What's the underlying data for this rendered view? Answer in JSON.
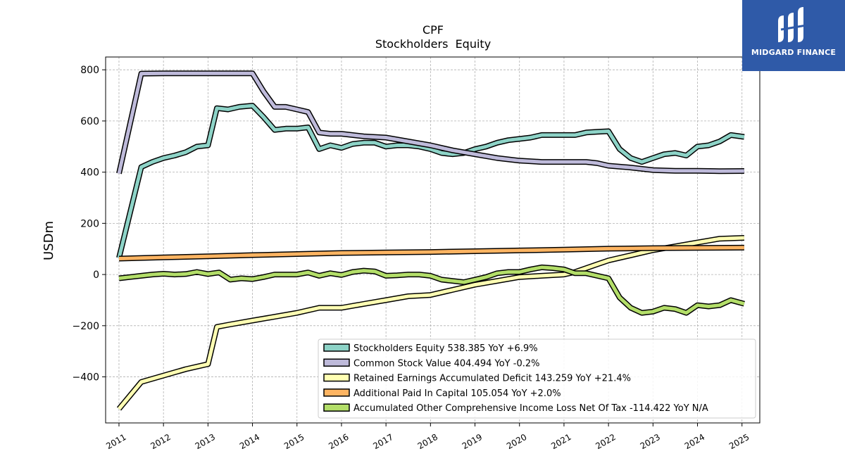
{
  "logo": {
    "text": "MIDGARD FINANCE"
  },
  "chart_data": {
    "type": "line",
    "title": "CPF",
    "subtitle": "Stockholders  Equity",
    "ylabel": "USDm",
    "xlabel": "",
    "xlim": [
      2010.7,
      2025.4
    ],
    "ylim": [
      -580,
      850
    ],
    "yticks": [
      -400,
      -200,
      0,
      200,
      400,
      600,
      800
    ],
    "ytick_labels": [
      "−400",
      "−200",
      "0",
      "200",
      "400",
      "600",
      "800"
    ],
    "xticks": [
      2011,
      2012,
      2013,
      2014,
      2015,
      2016,
      2017,
      2018,
      2019,
      2020,
      2021,
      2022,
      2023,
      2024,
      2025
    ],
    "xtick_labels": [
      "2011",
      "2012",
      "2013",
      "2014",
      "2015",
      "2016",
      "2017",
      "2018",
      "2019",
      "2020",
      "2021",
      "2022",
      "2023",
      "2024",
      "2025"
    ],
    "grid": true,
    "legend_position": "lower-right",
    "series": [
      {
        "name": "Stockholders Equity  538.385 YoY +6.9%",
        "color": "#8dd3c7",
        "points": [
          [
            2011.0,
            65
          ],
          [
            2011.5,
            420
          ],
          [
            2011.75,
            440
          ],
          [
            2012.0,
            455
          ],
          [
            2012.25,
            465
          ],
          [
            2012.5,
            478
          ],
          [
            2012.75,
            500
          ],
          [
            2013.0,
            505
          ],
          [
            2013.2,
            650
          ],
          [
            2013.45,
            645
          ],
          [
            2013.7,
            655
          ],
          [
            2014.0,
            660
          ],
          [
            2014.25,
            615
          ],
          [
            2014.5,
            565
          ],
          [
            2014.75,
            570
          ],
          [
            2015.0,
            570
          ],
          [
            2015.25,
            575
          ],
          [
            2015.5,
            490
          ],
          [
            2015.75,
            505
          ],
          [
            2016.0,
            495
          ],
          [
            2016.25,
            510
          ],
          [
            2016.5,
            515
          ],
          [
            2016.75,
            515
          ],
          [
            2017.0,
            500
          ],
          [
            2017.25,
            505
          ],
          [
            2017.5,
            505
          ],
          [
            2017.75,
            500
          ],
          [
            2018.0,
            490
          ],
          [
            2018.25,
            475
          ],
          [
            2018.5,
            470
          ],
          [
            2018.75,
            475
          ],
          [
            2019.0,
            490
          ],
          [
            2019.25,
            500
          ],
          [
            2019.5,
            515
          ],
          [
            2019.75,
            525
          ],
          [
            2020.0,
            530
          ],
          [
            2020.25,
            535
          ],
          [
            2020.5,
            545
          ],
          [
            2020.75,
            545
          ],
          [
            2021.0,
            545
          ],
          [
            2021.25,
            545
          ],
          [
            2021.5,
            555
          ],
          [
            2021.75,
            558
          ],
          [
            2022.0,
            560
          ],
          [
            2022.25,
            490
          ],
          [
            2022.5,
            455
          ],
          [
            2022.75,
            440
          ],
          [
            2023.0,
            455
          ],
          [
            2023.25,
            470
          ],
          [
            2023.5,
            475
          ],
          [
            2023.75,
            465
          ],
          [
            2024.0,
            500
          ],
          [
            2024.25,
            505
          ],
          [
            2024.5,
            520
          ],
          [
            2024.75,
            545
          ],
          [
            2025.05,
            538
          ]
        ]
      },
      {
        "name": "Common Stock Value  404.494 YoY -0.2%",
        "color": "#bebada",
        "points": [
          [
            2011.0,
            395
          ],
          [
            2011.5,
            785
          ],
          [
            2012.0,
            786
          ],
          [
            2012.5,
            786
          ],
          [
            2013.0,
            786
          ],
          [
            2013.5,
            786
          ],
          [
            2014.0,
            786
          ],
          [
            2014.25,
            715
          ],
          [
            2014.5,
            655
          ],
          [
            2014.75,
            655
          ],
          [
            2015.0,
            645
          ],
          [
            2015.25,
            635
          ],
          [
            2015.5,
            555
          ],
          [
            2015.75,
            550
          ],
          [
            2016.0,
            550
          ],
          [
            2016.5,
            540
          ],
          [
            2017.0,
            535
          ],
          [
            2017.5,
            520
          ],
          [
            2018.0,
            505
          ],
          [
            2018.5,
            485
          ],
          [
            2019.0,
            470
          ],
          [
            2019.5,
            455
          ],
          [
            2020.0,
            445
          ],
          [
            2020.5,
            440
          ],
          [
            2021.0,
            440
          ],
          [
            2021.5,
            440
          ],
          [
            2021.75,
            435
          ],
          [
            2022.0,
            425
          ],
          [
            2022.5,
            418
          ],
          [
            2023.0,
            408
          ],
          [
            2023.5,
            405
          ],
          [
            2024.0,
            405
          ],
          [
            2024.5,
            404
          ],
          [
            2025.05,
            404.5
          ]
        ]
      },
      {
        "name": "Retained Earnings Accumulated Deficit  143.259 YoY +21.4%",
        "color": "#ffffb3",
        "points": [
          [
            2011.0,
            -525
          ],
          [
            2011.5,
            -420
          ],
          [
            2012.0,
            -395
          ],
          [
            2012.5,
            -370
          ],
          [
            2013.0,
            -350
          ],
          [
            2013.2,
            -205
          ],
          [
            2013.5,
            -195
          ],
          [
            2014.0,
            -180
          ],
          [
            2014.5,
            -165
          ],
          [
            2015.0,
            -150
          ],
          [
            2015.5,
            -130
          ],
          [
            2016.0,
            -130
          ],
          [
            2016.5,
            -115
          ],
          [
            2017.0,
            -100
          ],
          [
            2017.5,
            -85
          ],
          [
            2018.0,
            -80
          ],
          [
            2018.5,
            -60
          ],
          [
            2019.0,
            -40
          ],
          [
            2019.5,
            -25
          ],
          [
            2020.0,
            -10
          ],
          [
            2020.5,
            -5
          ],
          [
            2021.0,
            0
          ],
          [
            2021.25,
            10
          ],
          [
            2021.5,
            25
          ],
          [
            2021.75,
            40
          ],
          [
            2022.0,
            55
          ],
          [
            2022.5,
            75
          ],
          [
            2023.0,
            95
          ],
          [
            2023.5,
            110
          ],
          [
            2024.0,
            125
          ],
          [
            2024.5,
            140
          ],
          [
            2025.05,
            143.3
          ]
        ]
      },
      {
        "name": "Additional Paid In Capital  105.054 YoY +2.0%",
        "color": "#fdb462",
        "points": [
          [
            2011.0,
            62
          ],
          [
            2012.0,
            67
          ],
          [
            2013.0,
            71
          ],
          [
            2014.0,
            76
          ],
          [
            2015.0,
            80
          ],
          [
            2016.0,
            84
          ],
          [
            2017.0,
            86
          ],
          [
            2018.0,
            88
          ],
          [
            2019.0,
            91
          ],
          [
            2020.0,
            94
          ],
          [
            2021.0,
            97
          ],
          [
            2022.0,
            101
          ],
          [
            2023.0,
            103
          ],
          [
            2024.0,
            104
          ],
          [
            2025.05,
            105.1
          ]
        ]
      },
      {
        "name": "Accumulated Other Comprehensive Income Loss Net Of Tax  -114.422 YoY N/A",
        "color": "#b3de69",
        "points": [
          [
            2011.0,
            -15
          ],
          [
            2011.25,
            -10
          ],
          [
            2011.5,
            -5
          ],
          [
            2011.75,
            0
          ],
          [
            2012.0,
            3
          ],
          [
            2012.25,
            0
          ],
          [
            2012.5,
            2
          ],
          [
            2012.75,
            10
          ],
          [
            2013.0,
            2
          ],
          [
            2013.25,
            8
          ],
          [
            2013.5,
            -20
          ],
          [
            2013.75,
            -15
          ],
          [
            2014.0,
            -18
          ],
          [
            2014.25,
            -10
          ],
          [
            2014.5,
            0
          ],
          [
            2014.75,
            0
          ],
          [
            2015.0,
            0
          ],
          [
            2015.25,
            8
          ],
          [
            2015.5,
            -5
          ],
          [
            2015.75,
            5
          ],
          [
            2016.0,
            -2
          ],
          [
            2016.25,
            10
          ],
          [
            2016.5,
            15
          ],
          [
            2016.75,
            12
          ],
          [
            2017.0,
            -5
          ],
          [
            2017.25,
            -3
          ],
          [
            2017.5,
            0
          ],
          [
            2017.75,
            0
          ],
          [
            2018.0,
            -5
          ],
          [
            2018.25,
            -20
          ],
          [
            2018.5,
            -25
          ],
          [
            2018.75,
            -30
          ],
          [
            2019.0,
            -20
          ],
          [
            2019.25,
            -10
          ],
          [
            2019.5,
            5
          ],
          [
            2019.75,
            10
          ],
          [
            2020.0,
            10
          ],
          [
            2020.25,
            20
          ],
          [
            2020.5,
            28
          ],
          [
            2020.75,
            25
          ],
          [
            2021.0,
            20
          ],
          [
            2021.25,
            5
          ],
          [
            2021.5,
            5
          ],
          [
            2021.75,
            -5
          ],
          [
            2022.0,
            -15
          ],
          [
            2022.25,
            -90
          ],
          [
            2022.5,
            -130
          ],
          [
            2022.75,
            -150
          ],
          [
            2023.0,
            -145
          ],
          [
            2023.25,
            -130
          ],
          [
            2023.5,
            -135
          ],
          [
            2023.75,
            -150
          ],
          [
            2024.0,
            -120
          ],
          [
            2024.25,
            -125
          ],
          [
            2024.5,
            -120
          ],
          [
            2024.75,
            -100
          ],
          [
            2025.05,
            -114.4
          ]
        ]
      }
    ]
  }
}
